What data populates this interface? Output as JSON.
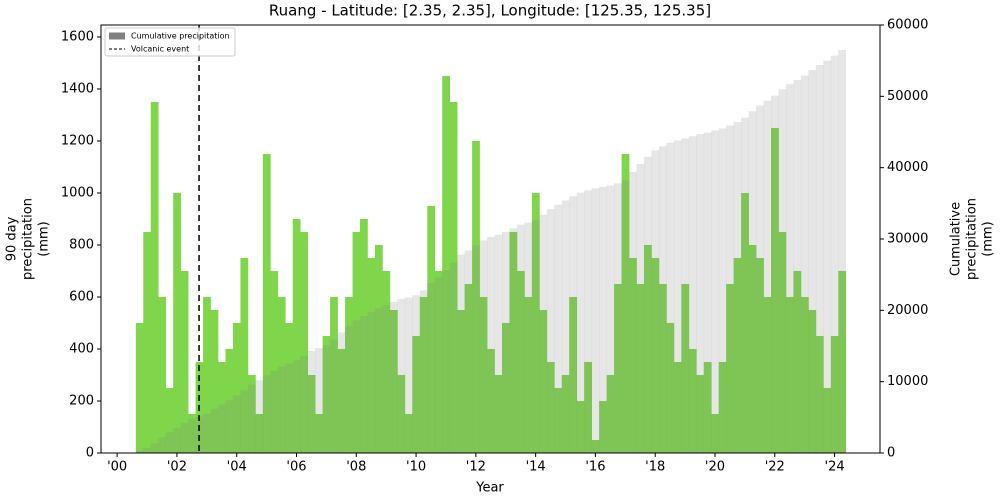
{
  "chart_data": {
    "type": "bar",
    "title": "Ruang - Latitude: [2.35, 2.35], Longitude: [125.35, 125.35]",
    "xlabel": "Year",
    "ylabel": [
      "90 day",
      "precipitation",
      "(mm)"
    ],
    "y2label": [
      "Cumulative",
      "precipitation",
      "(mm)"
    ],
    "x": [
      2000.75,
      2001,
      2001.25,
      2001.5,
      2001.75,
      2002,
      2002.25,
      2002.5,
      2002.75,
      2003,
      2003.25,
      2003.5,
      2003.75,
      2004,
      2004.25,
      2004.5,
      2004.75,
      2005,
      2005.25,
      2005.5,
      2005.75,
      2006,
      2006.25,
      2006.5,
      2006.75,
      2007,
      2007.25,
      2007.5,
      2007.75,
      2008,
      2008.25,
      2008.5,
      2008.75,
      2009,
      2009.25,
      2009.5,
      2009.75,
      2010,
      2010.25,
      2010.5,
      2010.75,
      2011,
      2011.25,
      2011.5,
      2011.75,
      2012,
      2012.25,
      2012.5,
      2012.75,
      2013,
      2013.25,
      2013.5,
      2013.75,
      2014,
      2014.25,
      2014.5,
      2014.75,
      2015,
      2015.25,
      2015.5,
      2015.75,
      2016,
      2016.25,
      2016.5,
      2016.75,
      2017,
      2017.25,
      2017.5,
      2017.75,
      2018,
      2018.25,
      2018.5,
      2018.75,
      2019,
      2019.25,
      2019.5,
      2019.75,
      2020,
      2020.25,
      2020.5,
      2020.75,
      2021,
      2021.25,
      2021.5,
      2021.75,
      2022,
      2022.25,
      2022.5,
      2022.75,
      2023,
      2023.25,
      2023.5,
      2023.75,
      2024,
      2024.25
    ],
    "series": [
      {
        "color": "#7fd64a",
        "values": [
          500,
          850,
          1350,
          600,
          250,
          1000,
          700,
          150,
          350,
          600,
          550,
          350,
          400,
          500,
          750,
          300,
          150,
          1150,
          700,
          600,
          500,
          900,
          850,
          300,
          150,
          450,
          600,
          400,
          600,
          850,
          900,
          750,
          800,
          700,
          550,
          300,
          150,
          450,
          600,
          950,
          700,
          1450,
          1350,
          550,
          650,
          1200,
          600,
          400,
          300,
          500,
          850,
          700,
          600,
          1000,
          550,
          350,
          250,
          300,
          600,
          200,
          350,
          50,
          200,
          300,
          650,
          1150,
          750,
          650,
          800,
          750,
          650,
          500,
          350,
          650,
          400,
          300,
          350,
          150,
          350,
          650,
          750,
          1000,
          800,
          750,
          600,
          1250,
          850,
          600,
          700,
          600,
          550,
          450,
          250,
          450,
          700
        ]
      },
      {
        "name": "Cumulative precipitation",
        "color": "#808080",
        "axis": "y2",
        "values": [
          300,
          700,
          1400,
          2200,
          2900,
          3500,
          4200,
          4800,
          5100,
          5500,
          6200,
          6800,
          7400,
          8100,
          8800,
          9600,
          10200,
          10900,
          11500,
          12100,
          12500,
          13000,
          13600,
          14300,
          14700,
          15100,
          15900,
          16900,
          17800,
          18600,
          19200,
          19800,
          20300,
          20700,
          21200,
          21600,
          21800,
          22100,
          22800,
          23800,
          24600,
          25600,
          26700,
          27800,
          28400,
          29100,
          29800,
          30300,
          30600,
          31000,
          31500,
          32000,
          32300,
          32600,
          33400,
          34200,
          34800,
          35400,
          36000,
          36500,
          36800,
          37100,
          37300,
          37500,
          37800,
          38200,
          39400,
          40500,
          41500,
          42400,
          43000,
          43500,
          43800,
          44100,
          44400,
          44700,
          44900,
          45200,
          45500,
          45900,
          46400,
          47000,
          47900,
          48700,
          49400,
          50100,
          51000,
          51700,
          52300,
          52900,
          53700,
          54400,
          55000,
          55700,
          56500
        ]
      }
    ],
    "vlines": [
      {
        "name": "Volcanic event",
        "x": 2002.74,
        "color": "#000000"
      }
    ],
    "xlim": [
      1999.46,
      2025.52
    ],
    "xticks": [
      {
        "value": 2000,
        "label": "'00"
      },
      {
        "value": 2002,
        "label": "'02"
      },
      {
        "value": 2004,
        "label": "'04"
      },
      {
        "value": 2006,
        "label": "'06"
      },
      {
        "value": 2008,
        "label": "'08"
      },
      {
        "value": 2010,
        "label": "'10"
      },
      {
        "value": 2012,
        "label": "'12"
      },
      {
        "value": 2014,
        "label": "'14"
      },
      {
        "value": 2016,
        "label": "'16"
      },
      {
        "value": 2018,
        "label": "'18"
      },
      {
        "value": 2020,
        "label": "'20"
      },
      {
        "value": 2022,
        "label": "'22"
      },
      {
        "value": 2024,
        "label": "'24"
      }
    ],
    "ylim": [
      0,
      1646
    ],
    "yticks": [
      0,
      200,
      400,
      600,
      800,
      1000,
      1200,
      1400,
      1600
    ],
    "y2lim": [
      0,
      60000
    ],
    "y2ticks": [
      0,
      10000,
      20000,
      30000,
      40000,
      50000,
      60000
    ],
    "legend": "upper left"
  }
}
